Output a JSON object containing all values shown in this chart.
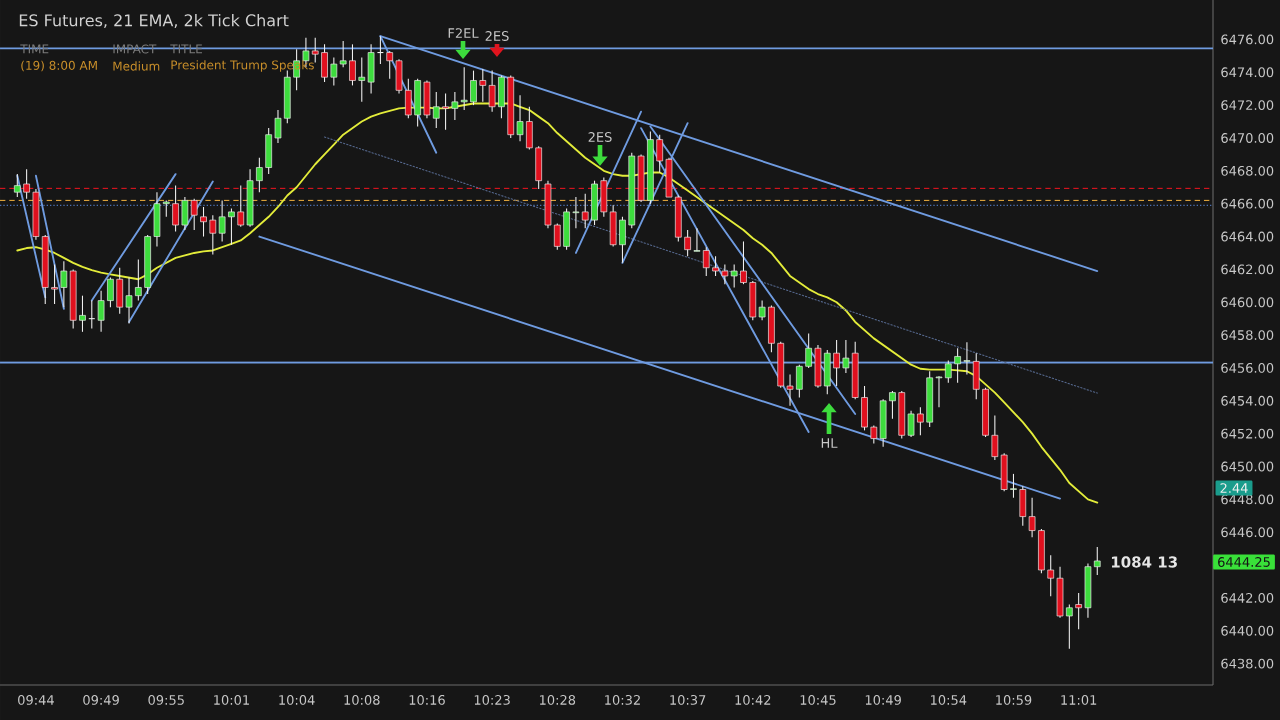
{
  "chart_data": {
    "type": "candlestick",
    "title": "ES Futures, 21 EMA, 2k Tick Chart",
    "categories": [
      null,
      null,
      "09:44",
      null,
      null,
      null,
      null,
      null,
      null,
      "09:49",
      null,
      null,
      null,
      null,
      null,
      null,
      "09:55",
      null,
      null,
      null,
      null,
      null,
      null,
      "10:01",
      null,
      null,
      null,
      null,
      null,
      null,
      "10:04",
      null,
      null,
      null,
      null,
      null,
      null,
      "10:08",
      null,
      null,
      null,
      null,
      null,
      null,
      "10:16",
      null,
      null,
      null,
      null,
      null,
      null,
      "10:23",
      null,
      null,
      null,
      null,
      null,
      null,
      "10:28",
      null,
      null,
      null,
      null,
      null,
      null,
      "10:32",
      null,
      null,
      null,
      null,
      null,
      null,
      "10:37",
      null,
      null,
      null,
      null,
      null,
      null,
      "10:42",
      null,
      null,
      null,
      null,
      null,
      null,
      "10:45",
      null,
      null,
      null,
      null,
      null,
      null,
      "10:49",
      null,
      null,
      null,
      null,
      null,
      null,
      "10:54",
      null,
      null,
      null,
      null,
      null,
      null,
      "10:59",
      null,
      null,
      null,
      null,
      null,
      null,
      "11:01",
      null,
      null
    ],
    "ohlc": [
      [
        6466.7,
        6467.8,
        6466.4,
        6467.1
      ],
      [
        6467.2,
        6468.1,
        6466.3,
        6466.7
      ],
      [
        6466.7,
        6466.9,
        6463.8,
        6464.0
      ],
      [
        6464.0,
        6464.1,
        6459.9,
        6460.9
      ],
      [
        6460.9,
        6462.3,
        6459.9,
        6460.8
      ],
      [
        6460.9,
        6462.5,
        6459.7,
        6461.9
      ],
      [
        6461.9,
        6462.0,
        6458.4,
        6458.9
      ],
      [
        6458.9,
        6460.4,
        6458.2,
        6459.2
      ],
      [
        6459.0,
        6460.1,
        6458.4,
        6459.0
      ],
      [
        6458.9,
        6460.7,
        6458.2,
        6460.1
      ],
      [
        6460.1,
        6461.5,
        6459.7,
        6461.4
      ],
      [
        6461.4,
        6462.1,
        6459.3,
        6459.7
      ],
      [
        6459.7,
        6461.5,
        6458.7,
        6460.4
      ],
      [
        6460.4,
        6462.6,
        6460.1,
        6460.9
      ],
      [
        6460.9,
        6464.1,
        6460.5,
        6464.0
      ],
      [
        6464.0,
        6466.7,
        6463.4,
        6466.0
      ],
      [
        6466.0,
        6466.2,
        6465.2,
        6466.1
      ],
      [
        6466.0,
        6467.1,
        6464.3,
        6464.7
      ],
      [
        6464.7,
        6466.4,
        6464.4,
        6466.2
      ],
      [
        6466.2,
        6466.3,
        6464.4,
        6465.3
      ],
      [
        6465.2,
        6465.8,
        6464.0,
        6464.9
      ],
      [
        6465.0,
        6465.3,
        6462.9,
        6464.2
      ],
      [
        6464.2,
        6466.2,
        6463.7,
        6465.2
      ],
      [
        6465.2,
        6465.7,
        6463.5,
        6465.5
      ],
      [
        6465.5,
        6467.1,
        6464.6,
        6464.7
      ],
      [
        6464.7,
        6468.1,
        6464.6,
        6467.4
      ],
      [
        6467.4,
        6468.8,
        6466.7,
        6468.2
      ],
      [
        6468.2,
        6470.6,
        6467.8,
        6470.2
      ],
      [
        6470.0,
        6471.7,
        6469.7,
        6471.2
      ],
      [
        6471.2,
        6474.1,
        6470.9,
        6473.7
      ],
      [
        6473.7,
        6475.4,
        6472.9,
        6474.7
      ],
      [
        6474.7,
        6476.1,
        6474.3,
        6475.3
      ],
      [
        6475.3,
        6476.1,
        6474.6,
        6475.1
      ],
      [
        6475.2,
        6475.7,
        6473.4,
        6473.7
      ],
      [
        6473.7,
        6474.9,
        6473.2,
        6474.5
      ],
      [
        6474.5,
        6475.9,
        6474.3,
        6474.7
      ],
      [
        6474.7,
        6475.7,
        6473.2,
        6473.5
      ],
      [
        6473.5,
        6474.9,
        6472.2,
        6473.7
      ],
      [
        6473.4,
        6475.7,
        6472.7,
        6475.2
      ],
      [
        6475.2,
        6476.2,
        6474.5,
        6475.2
      ],
      [
        6475.2,
        6475.3,
        6473.6,
        6474.7
      ],
      [
        6474.7,
        6474.8,
        6472.7,
        6472.9
      ],
      [
        6472.9,
        6473.6,
        6471.2,
        6471.4
      ],
      [
        6471.4,
        6473.6,
        6470.7,
        6473.5
      ],
      [
        6473.4,
        6473.5,
        6471.2,
        6471.4
      ],
      [
        6471.2,
        6472.8,
        6470.6,
        6471.9
      ],
      [
        6471.9,
        6472.7,
        6470.5,
        6471.8
      ],
      [
        6471.8,
        6472.8,
        6471.1,
        6472.2
      ],
      [
        6472.2,
        6474.3,
        6471.7,
        6472.3
      ],
      [
        6472.2,
        6474.1,
        6472.0,
        6473.5
      ],
      [
        6473.5,
        6474.2,
        6472.2,
        6473.2
      ],
      [
        6473.2,
        6474.1,
        6471.6,
        6471.9
      ],
      [
        6471.9,
        6473.8,
        6471.2,
        6473.7
      ],
      [
        6473.7,
        6473.8,
        6470.0,
        6470.2
      ],
      [
        6470.2,
        6472.6,
        6469.8,
        6471.0
      ],
      [
        6471.0,
        6471.9,
        6469.3,
        6469.4
      ],
      [
        6469.4,
        6469.5,
        6466.9,
        6467.4
      ],
      [
        6467.2,
        6467.4,
        6464.5,
        6464.7
      ],
      [
        6464.7,
        6464.8,
        6463.2,
        6463.4
      ],
      [
        6463.4,
        6465.7,
        6463.2,
        6465.5
      ],
      [
        6465.45,
        6466.4,
        6464.5,
        6465.5
      ],
      [
        6465.5,
        6466.6,
        6464.5,
        6465.0
      ],
      [
        6465.0,
        6467.4,
        6464.7,
        6467.2
      ],
      [
        6467.4,
        6467.6,
        6465.2,
        6465.5
      ],
      [
        6465.5,
        6465.9,
        6463.4,
        6463.5
      ],
      [
        6463.5,
        6465.2,
        6462.4,
        6465.0
      ],
      [
        6464.7,
        6469.1,
        6464.5,
        6468.9
      ],
      [
        6468.9,
        6469.0,
        6466.1,
        6466.2
      ],
      [
        6466.2,
        6470.4,
        6466.0,
        6469.9
      ],
      [
        6469.9,
        6470.2,
        6467.9,
        6468.6
      ],
      [
        6468.7,
        6468.8,
        6466.4,
        6466.4
      ],
      [
        6466.4,
        6466.5,
        6463.7,
        6463.96
      ],
      [
        6463.96,
        6464.4,
        6462.8,
        6463.2
      ],
      [
        6463.1,
        6464.5,
        6463.1,
        6463.15
      ],
      [
        6463.15,
        6463.35,
        6461.6,
        6462.1
      ],
      [
        6462.1,
        6462.8,
        6461.6,
        6461.9
      ],
      [
        6461.9,
        6462.3,
        6461.1,
        6461.6
      ],
      [
        6461.6,
        6462.3,
        6460.9,
        6461.9
      ],
      [
        6461.9,
        6463.7,
        6461.1,
        6461.2
      ],
      [
        6461.2,
        6461.3,
        6458.9,
        6459.1
      ],
      [
        6459.1,
        6460.1,
        6458.9,
        6459.7
      ],
      [
        6459.7,
        6459.8,
        6456.96,
        6457.5
      ],
      [
        6457.5,
        6457.6,
        6454.8,
        6454.9
      ],
      [
        6454.9,
        6455.6,
        6453.7,
        6454.7
      ],
      [
        6454.7,
        6456.2,
        6454.2,
        6456.1
      ],
      [
        6456.1,
        6458.1,
        6456.0,
        6457.2
      ],
      [
        6457.2,
        6457.4,
        6454.8,
        6454.9
      ],
      [
        6454.9,
        6457.1,
        6454.4,
        6456.9
      ],
      [
        6456.9,
        6457.7,
        6454.9,
        6456.0
      ],
      [
        6456.0,
        6457.7,
        6455.7,
        6456.6
      ],
      [
        6456.9,
        6457.6,
        6454.1,
        6454.2
      ],
      [
        6454.2,
        6454.9,
        6452.2,
        6452.4
      ],
      [
        6452.4,
        6452.5,
        6451.4,
        6451.7
      ],
      [
        6451.7,
        6454.1,
        6451.2,
        6454.0
      ],
      [
        6454.0,
        6454.6,
        6452.9,
        6454.5
      ],
      [
        6454.5,
        6454.6,
        6451.7,
        6451.9
      ],
      [
        6451.9,
        6453.4,
        6451.8,
        6453.2
      ],
      [
        6453.2,
        6453.6,
        6451.9,
        6452.7
      ],
      [
        6452.7,
        6455.8,
        6452.4,
        6455.4
      ],
      [
        6455.4,
        6455.5,
        6453.6,
        6455.45
      ],
      [
        6455.4,
        6456.45,
        6455.1,
        6456.25
      ],
      [
        6456.25,
        6457.2,
        6455.1,
        6456.7
      ],
      [
        6456.4,
        6457.57,
        6455.6,
        6456.45
      ],
      [
        6456.4,
        6456.9,
        6454.1,
        6454.7
      ],
      [
        6454.7,
        6454.8,
        6451.8,
        6451.9
      ],
      [
        6451.9,
        6453.1,
        6450.4,
        6450.6
      ],
      [
        6450.7,
        6450.8,
        6448.5,
        6448.6
      ],
      [
        6448.6,
        6449.55,
        6448.1,
        6448.65
      ],
      [
        6448.6,
        6448.8,
        6446.4,
        6446.95
      ],
      [
        6446.95,
        6448.1,
        6445.7,
        6446.1
      ],
      [
        6446.1,
        6446.2,
        6443.5,
        6443.7
      ],
      [
        6443.7,
        6444.6,
        6442.1,
        6443.2
      ],
      [
        6443.2,
        6443.9,
        6440.8,
        6440.9
      ],
      [
        6440.9,
        6441.6,
        6438.9,
        6441.4
      ],
      [
        6441.6,
        6442.3,
        6440.1,
        6441.4
      ],
      [
        6441.4,
        6444.1,
        6440.8,
        6443.9
      ],
      [
        6443.9,
        6445.1,
        6443.4,
        6444.25
      ]
    ],
    "series": [
      {
        "type": "line",
        "color": "#e3ec3a",
        "values": [
          6463.15,
          6463.3,
          6463.35,
          6463.2,
          6463.0,
          6462.7,
          6462.4,
          6462.15,
          6461.95,
          6461.8,
          6461.7,
          6461.6,
          6461.5,
          6461.4,
          6461.7,
          6462.1,
          6462.4,
          6462.7,
          6462.85,
          6463.0,
          6463.1,
          6463.15,
          6463.35,
          6463.55,
          6463.76,
          6464.2,
          6464.7,
          6465.2,
          6465.8,
          6466.5,
          6467.0,
          6467.7,
          6468.4,
          6469.0,
          6469.6,
          6470.2,
          6470.6,
          6471.0,
          6471.3,
          6471.5,
          6471.65,
          6471.8,
          6471.85,
          6471.85,
          6471.85,
          6471.8,
          6471.8,
          6471.9,
          6472.0,
          6472.1,
          6472.1,
          6472.1,
          6472.1,
          6472.1,
          6471.9,
          6471.7,
          6471.3,
          6470.9,
          6470.3,
          6469.8,
          6469.3,
          6468.8,
          6468.4,
          6468.0,
          6467.8,
          6467.7,
          6467.7,
          6467.8,
          6467.9,
          6467.9,
          6467.6,
          6467.2,
          6466.8,
          6466.4,
          6466.0,
          6465.6,
          6465.2,
          6464.8,
          6464.4,
          6463.9,
          6463.5,
          6463.0,
          6462.3,
          6461.6,
          6461.2,
          6460.8,
          6460.5,
          6460.3,
          6460.0,
          6459.5,
          6458.8,
          6458.3,
          6457.8,
          6457.4,
          6457.0,
          6456.6,
          6456.2,
          6455.95,
          6455.9,
          6455.9,
          6455.9,
          6455.85,
          6455.8,
          6455.5,
          6455.0,
          6454.5,
          6453.9,
          6453.3,
          6452.7,
          6452.0,
          6451.2,
          6450.5,
          6449.8,
          6449.0,
          6448.5,
          6448.0,
          6447.8
        ]
      },
      {
        "type": "line",
        "color": "#6f9be0",
        "values": [
          null,
          null,
          null,
          null,
          null,
          null,
          null,
          null,
          null,
          null,
          null,
          null,
          null,
          null,
          null,
          null,
          null,
          null,
          null,
          null,
          null,
          null,
          null,
          null,
          null,
          null,
          null,
          null,
          null,
          null,
          null,
          null,
          null,
          null,
          null,
          null,
          null,
          null,
          null,
          6476.2,
          null,
          null,
          null,
          null,
          null,
          null,
          null,
          null,
          null,
          null,
          null,
          null,
          null,
          null,
          null,
          null,
          null,
          null,
          null,
          null,
          null,
          null,
          null,
          null,
          null,
          null,
          null,
          null,
          null,
          null,
          null,
          null,
          null,
          null,
          null,
          null,
          null,
          null,
          null,
          null,
          null,
          null,
          null,
          null,
          null,
          null,
          null,
          null,
          null,
          null,
          null,
          null,
          null,
          null,
          null,
          null,
          null,
          null,
          null,
          null,
          null,
          null,
          null,
          null,
          null,
          null,
          null,
          null,
          null,
          null,
          null,
          null,
          null,
          null,
          null,
          null,
          6461.9
        ]
      },
      {
        "type": "line",
        "color": "#6f9be0",
        "values": [
          null,
          null,
          null,
          null,
          null,
          null,
          null,
          null,
          null,
          null,
          null,
          null,
          null,
          null,
          null,
          null,
          null,
          null,
          null,
          null,
          null,
          null,
          null,
          null,
          null,
          null,
          6464.0,
          null,
          null,
          null,
          null,
          null,
          null,
          null,
          null,
          null,
          null,
          null,
          null,
          null,
          null,
          null,
          null,
          null,
          null,
          null,
          null,
          null,
          null,
          null,
          null,
          null,
          null,
          null,
          null,
          null,
          null,
          null,
          null,
          null,
          null,
          null,
          null,
          null,
          null,
          null,
          null,
          null,
          null,
          null,
          null,
          null,
          null,
          null,
          null,
          null,
          null,
          null,
          null,
          null,
          null,
          null,
          null,
          null,
          null,
          null,
          null,
          null,
          null,
          null,
          null,
          null,
          null,
          null,
          null,
          null,
          null,
          null,
          null,
          null,
          null,
          null,
          null,
          null,
          null,
          null,
          null,
          null,
          null,
          null,
          null,
          null,
          6448.05,
          null,
          null,
          null,
          null
        ]
      },
      {
        "type": "line",
        "color": "#56698f",
        "line_style": "dotted",
        "values": [
          null,
          null,
          null,
          null,
          null,
          null,
          null,
          null,
          null,
          null,
          null,
          null,
          null,
          null,
          null,
          null,
          null,
          null,
          null,
          null,
          null,
          null,
          null,
          null,
          null,
          null,
          null,
          null,
          null,
          null,
          null,
          null,
          null,
          6470.06,
          null,
          null,
          null,
          null,
          null,
          null,
          null,
          null,
          null,
          null,
          null,
          null,
          null,
          null,
          null,
          null,
          null,
          null,
          null,
          null,
          null,
          null,
          null,
          null,
          null,
          null,
          null,
          null,
          null,
          null,
          null,
          null,
          null,
          null,
          null,
          null,
          null,
          null,
          null,
          null,
          null,
          null,
          null,
          null,
          null,
          null,
          null,
          null,
          null,
          null,
          null,
          null,
          null,
          null,
          null,
          null,
          null,
          null,
          null,
          null,
          null,
          null,
          null,
          null,
          null,
          null,
          null,
          null,
          null,
          null,
          null,
          null,
          null,
          null,
          null,
          null,
          null,
          null,
          null,
          null,
          null,
          null,
          6454.47
        ]
      },
      {
        "type": "line",
        "color": "#6f9be0",
        "values": [
          6467.7,
          null,
          null,
          6460.3,
          null,
          null,
          null,
          null,
          null,
          null,
          null,
          null,
          null,
          null,
          null,
          null,
          null,
          null,
          null,
          null,
          null,
          null,
          null,
          null,
          null,
          null,
          null,
          null,
          null,
          null,
          null,
          null,
          null,
          null,
          null,
          null,
          null,
          null,
          null,
          null,
          null,
          null,
          null,
          null,
          null,
          null,
          null,
          null,
          null,
          null,
          null,
          null,
          null,
          null,
          null,
          null,
          null,
          null,
          null,
          null,
          null,
          null,
          null,
          null,
          null,
          null,
          null,
          null,
          null,
          null,
          null,
          null,
          null,
          null,
          null,
          null,
          null,
          null,
          null,
          null,
          null,
          null,
          null,
          null,
          null,
          null,
          null,
          null,
          null,
          null,
          null,
          null,
          null,
          null,
          null,
          null,
          null,
          null,
          null,
          null,
          null,
          null,
          null,
          null,
          null,
          null,
          null,
          null,
          null,
          null,
          null,
          null,
          null,
          null,
          null,
          null,
          null
        ]
      },
      {
        "type": "line",
        "color": "#6f9be0",
        "values": [
          null,
          null,
          6467.7,
          null,
          null,
          6459.6,
          null,
          null,
          null,
          null,
          null,
          null,
          null,
          null,
          null,
          null,
          null,
          null,
          null,
          null,
          null,
          null,
          null,
          null,
          null,
          null,
          null,
          null,
          null,
          null,
          null,
          null,
          null,
          null,
          null,
          null,
          null,
          null,
          null,
          null,
          null,
          null,
          null,
          null,
          null,
          null,
          null,
          null,
          null,
          null,
          null,
          null,
          null,
          null,
          null,
          null,
          null,
          null,
          null,
          null,
          null,
          null,
          null,
          null,
          null,
          null,
          null,
          null,
          null,
          null,
          null,
          null,
          null,
          null,
          null,
          null,
          null,
          null,
          null,
          null,
          null,
          null,
          null,
          null,
          null,
          null,
          null,
          null,
          null,
          null,
          null,
          null,
          null,
          null,
          null,
          null,
          null,
          null,
          null,
          null,
          null,
          null,
          null,
          null,
          null,
          null,
          null,
          null,
          null,
          null,
          null,
          null,
          null,
          null,
          null,
          null,
          null
        ]
      },
      {
        "type": "line",
        "color": "#6f9be0",
        "values": [
          null,
          null,
          null,
          null,
          null,
          null,
          null,
          null,
          6460.1,
          null,
          null,
          null,
          null,
          null,
          null,
          null,
          null,
          6467.8,
          null,
          null,
          null,
          null,
          null,
          null,
          null,
          null,
          null,
          null,
          null,
          null,
          null,
          null,
          null,
          null,
          null,
          null,
          null,
          null,
          null,
          null,
          null,
          null,
          null,
          null,
          null,
          null,
          null,
          null,
          null,
          null,
          null,
          null,
          null,
          null,
          null,
          null,
          null,
          null,
          null,
          null,
          null,
          null,
          null,
          null,
          null,
          null,
          null,
          null,
          null,
          null,
          null,
          null,
          null,
          null,
          null,
          null,
          null,
          null,
          null,
          null,
          null,
          null,
          null,
          null,
          null,
          null,
          null,
          null,
          null,
          null,
          null,
          null,
          null,
          null,
          null,
          null,
          null,
          null,
          null,
          null,
          null,
          null,
          null,
          null,
          null,
          null,
          null,
          null,
          null,
          null,
          null,
          null,
          null,
          null,
          null,
          null,
          null
        ]
      },
      {
        "type": "line",
        "color": "#6f9be0",
        "values": [
          null,
          null,
          null,
          null,
          null,
          null,
          null,
          null,
          null,
          null,
          null,
          null,
          6458.8,
          null,
          null,
          null,
          null,
          null,
          null,
          null,
          null,
          6467.35,
          null,
          null,
          null,
          null,
          null,
          null,
          null,
          null,
          null,
          null,
          null,
          null,
          null,
          null,
          null,
          null,
          null,
          null,
          null,
          null,
          null,
          null,
          null,
          null,
          null,
          null,
          null,
          null,
          null,
          null,
          null,
          null,
          null,
          null,
          null,
          null,
          null,
          null,
          null,
          null,
          null,
          null,
          null,
          null,
          null,
          null,
          null,
          null,
          null,
          null,
          null,
          null,
          null,
          null,
          null,
          null,
          null,
          null,
          null,
          null,
          null,
          null,
          null,
          null,
          null,
          null,
          null,
          null,
          null,
          null,
          null,
          null,
          null,
          null,
          null,
          null,
          null,
          null,
          null,
          null,
          null,
          null,
          null,
          null,
          null,
          null,
          null,
          null,
          null,
          null,
          null,
          null,
          null,
          null,
          null
        ]
      },
      {
        "type": "line",
        "color": "#6f9be0",
        "values": [
          null,
          null,
          null,
          null,
          null,
          null,
          null,
          null,
          null,
          null,
          null,
          null,
          null,
          null,
          null,
          null,
          null,
          null,
          null,
          null,
          null,
          null,
          null,
          null,
          null,
          null,
          null,
          null,
          null,
          null,
          null,
          null,
          null,
          null,
          null,
          null,
          null,
          null,
          null,
          6476.2,
          null,
          null,
          null,
          null,
          null,
          6469.1,
          null,
          null,
          null,
          null,
          null,
          null,
          null,
          null,
          null,
          null,
          null,
          null,
          null,
          null,
          null,
          null,
          null,
          null,
          null,
          null,
          null,
          null,
          null,
          null,
          null,
          null,
          null,
          null,
          null,
          null,
          null,
          null,
          null,
          null,
          null,
          null,
          null,
          null,
          null,
          null,
          null,
          null,
          null,
          null,
          null,
          null,
          null,
          null,
          null,
          null,
          null,
          null,
          null,
          null,
          null,
          null,
          null,
          null,
          null,
          null,
          null,
          null,
          null,
          null,
          null,
          null,
          null,
          null,
          null,
          null,
          null
        ]
      },
      {
        "type": "line",
        "color": "#6f9be0",
        "values": [
          null,
          null,
          null,
          null,
          null,
          null,
          null,
          null,
          null,
          null,
          null,
          null,
          null,
          null,
          null,
          null,
          null,
          null,
          null,
          null,
          null,
          null,
          null,
          null,
          null,
          null,
          null,
          null,
          null,
          null,
          null,
          null,
          null,
          null,
          null,
          null,
          null,
          null,
          null,
          null,
          null,
          null,
          null,
          null,
          null,
          null,
          null,
          null,
          null,
          null,
          null,
          null,
          null,
          null,
          null,
          null,
          null,
          null,
          null,
          null,
          6463.0,
          null,
          null,
          null,
          null,
          null,
          null,
          6471.6,
          null,
          null,
          null,
          null,
          null,
          null,
          null,
          null,
          null,
          null,
          null,
          null,
          null,
          null,
          null,
          null,
          null,
          null,
          null,
          null,
          null,
          null,
          null,
          null,
          null,
          null,
          null,
          null,
          null,
          null,
          null,
          null,
          null,
          null,
          null,
          null,
          null,
          null,
          null,
          null,
          null,
          null,
          null,
          null,
          null,
          null,
          null,
          null,
          null
        ]
      },
      {
        "type": "line",
        "color": "#6f9be0",
        "values": [
          null,
          null,
          null,
          null,
          null,
          null,
          null,
          null,
          null,
          null,
          null,
          null,
          null,
          null,
          null,
          null,
          null,
          null,
          null,
          null,
          null,
          null,
          null,
          null,
          null,
          null,
          null,
          null,
          null,
          null,
          null,
          null,
          null,
          null,
          null,
          null,
          null,
          null,
          null,
          null,
          null,
          null,
          null,
          null,
          null,
          null,
          null,
          null,
          null,
          null,
          null,
          null,
          null,
          null,
          null,
          null,
          null,
          null,
          null,
          null,
          null,
          null,
          null,
          null,
          null,
          6462.4,
          null,
          null,
          null,
          null,
          null,
          null,
          6470.9,
          null,
          null,
          null,
          null,
          null,
          null,
          null,
          null,
          null,
          null,
          null,
          null,
          null,
          null,
          null,
          null,
          null,
          null,
          null,
          null,
          null,
          null,
          null,
          null,
          null,
          null,
          null,
          null,
          null,
          null,
          null,
          null,
          null,
          null,
          null,
          null,
          null,
          null,
          null,
          null,
          null,
          null,
          null,
          null
        ]
      },
      {
        "type": "line",
        "color": "#6f9be0",
        "values": [
          null,
          null,
          null,
          null,
          null,
          null,
          null,
          null,
          null,
          null,
          null,
          null,
          null,
          null,
          null,
          null,
          null,
          null,
          null,
          null,
          null,
          null,
          null,
          null,
          null,
          null,
          null,
          null,
          null,
          null,
          null,
          null,
          null,
          null,
          null,
          null,
          null,
          null,
          null,
          null,
          null,
          null,
          null,
          null,
          null,
          null,
          null,
          null,
          null,
          null,
          null,
          null,
          null,
          null,
          null,
          null,
          null,
          null,
          null,
          null,
          null,
          null,
          null,
          null,
          null,
          null,
          null,
          6470.6,
          null,
          null,
          null,
          null,
          null,
          null,
          null,
          null,
          null,
          null,
          null,
          null,
          null,
          null,
          null,
          null,
          null,
          6452.1,
          null,
          null,
          null,
          null,
          null,
          null,
          null,
          null,
          null,
          null,
          null,
          null,
          null,
          null,
          null,
          null,
          null,
          null,
          null,
          null,
          null,
          null,
          null,
          null,
          null,
          null,
          null,
          null,
          null,
          null,
          null
        ]
      },
      {
        "type": "line",
        "color": "#6f9be0",
        "values": [
          null,
          null,
          null,
          null,
          null,
          null,
          null,
          null,
          null,
          null,
          null,
          null,
          null,
          null,
          null,
          null,
          null,
          null,
          null,
          null,
          null,
          null,
          null,
          null,
          null,
          null,
          null,
          null,
          null,
          null,
          null,
          null,
          null,
          null,
          null,
          null,
          null,
          null,
          null,
          null,
          null,
          null,
          null,
          null,
          null,
          null,
          null,
          null,
          null,
          null,
          null,
          null,
          null,
          null,
          null,
          null,
          null,
          null,
          null,
          null,
          null,
          null,
          null,
          null,
          null,
          null,
          null,
          null,
          6470.7,
          null,
          null,
          null,
          null,
          null,
          null,
          null,
          null,
          null,
          null,
          null,
          null,
          null,
          null,
          null,
          null,
          null,
          null,
          null,
          null,
          null,
          6453.2,
          null,
          null,
          null,
          null,
          null,
          null,
          null,
          null,
          null,
          null,
          null,
          null,
          null,
          null,
          null,
          null,
          null,
          null,
          null,
          null,
          null,
          null,
          null,
          null,
          null,
          null
        ]
      }
    ],
    "ylim": [
      6436.7,
      6478.4
    ],
    "yticks": [
      {
        "value": 6438,
        "label": "6438.00"
      },
      {
        "value": 6440,
        "label": "6440.00"
      },
      {
        "value": 6442,
        "label": "6442.00"
      },
      {
        "value": 6446,
        "label": "6446.00"
      },
      {
        "value": 6448,
        "label": "6448.00"
      },
      {
        "value": 6450,
        "label": "6450.00"
      },
      {
        "value": 6452,
        "label": "6452.00"
      },
      {
        "value": 6454,
        "label": "6454.00"
      },
      {
        "value": 6456,
        "label": "6456.00"
      },
      {
        "value": 6458,
        "label": "6458.00"
      },
      {
        "value": 6460,
        "label": "6460.00"
      },
      {
        "value": 6462,
        "label": "6462.00"
      },
      {
        "value": 6464,
        "label": "6464.00"
      },
      {
        "value": 6466,
        "label": "6466.00"
      },
      {
        "value": 6468,
        "label": "6468.00"
      },
      {
        "value": 6470,
        "label": "6470.00"
      },
      {
        "value": 6472,
        "label": "6472.00"
      },
      {
        "value": 6474,
        "label": "6474.00"
      },
      {
        "value": 6476,
        "label": "6476.00"
      }
    ],
    "ref_lines": [
      {
        "axis": "y",
        "value": 6475.45,
        "color": "#6f9be0"
      },
      {
        "axis": "y",
        "value": 6456.33,
        "color": "#6f9be0"
      },
      {
        "axis": "y",
        "value": 6466.93,
        "color": "#d0141e",
        "line_style": "dashed"
      },
      {
        "axis": "y",
        "value": 6466.2,
        "color": "#d9a03a",
        "line_style": "dashed"
      },
      {
        "axis": "y",
        "value": 6465.9,
        "color": "#4a6fb0",
        "line_style": "dotted"
      }
    ],
    "annotations": [
      "TIME",
      "IMPACT",
      "TITLE",
      "(19) 8:00 AM",
      "Medium",
      "President Trump Speaks",
      {
        "text": "F2EL",
        "y": 6474.8
      },
      "2ES",
      {
        "text": "2ES",
        "y": 6468.3
      },
      "HL",
      "1084  13",
      "2.44",
      "6444.25"
    ]
  }
}
